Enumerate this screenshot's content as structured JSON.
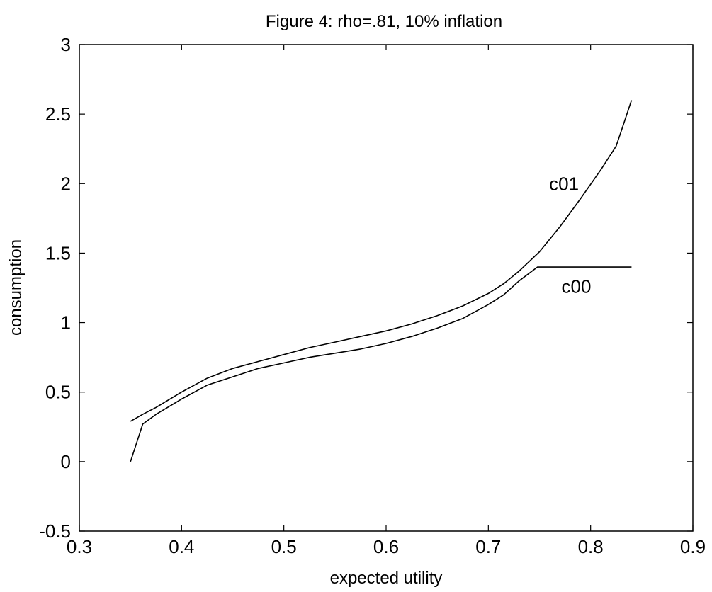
{
  "chart_data": {
    "type": "line",
    "title": "Figure 4: rho=.81, 10% inflation",
    "xlabel": "expected utility",
    "ylabel": "consumption",
    "xlim": [
      0.3,
      0.9
    ],
    "ylim": [
      -0.5,
      3
    ],
    "xticks": [
      {
        "value": 0.3,
        "label": "0.3"
      },
      {
        "value": 0.4,
        "label": "0.4"
      },
      {
        "value": 0.5,
        "label": "0.5"
      },
      {
        "value": 0.6,
        "label": "0.6"
      },
      {
        "value": 0.7,
        "label": "0.7"
      },
      {
        "value": 0.8,
        "label": "0.8"
      },
      {
        "value": 0.9,
        "label": "0.9"
      }
    ],
    "yticks": [
      {
        "value": -0.5,
        "label": "-0.5"
      },
      {
        "value": 0,
        "label": "0"
      },
      {
        "value": 0.5,
        "label": "0.5"
      },
      {
        "value": 1,
        "label": "1"
      },
      {
        "value": 1.5,
        "label": "1.5"
      },
      {
        "value": 2,
        "label": "2"
      },
      {
        "value": 2.5,
        "label": "2.5"
      },
      {
        "value": 3,
        "label": "3"
      }
    ],
    "grid": false,
    "legend": "none",
    "line_color": "#000000",
    "series": [
      {
        "name": "c01",
        "x": [
          0.35,
          0.362,
          0.375,
          0.4,
          0.425,
          0.45,
          0.475,
          0.5,
          0.525,
          0.55,
          0.575,
          0.6,
          0.625,
          0.65,
          0.675,
          0.7,
          0.715,
          0.73,
          0.75,
          0.77,
          0.79,
          0.81,
          0.825,
          0.83,
          0.84
        ],
        "y": [
          0.29,
          0.34,
          0.39,
          0.5,
          0.6,
          0.67,
          0.72,
          0.77,
          0.82,
          0.86,
          0.9,
          0.94,
          0.99,
          1.05,
          1.12,
          1.21,
          1.28,
          1.37,
          1.51,
          1.69,
          1.89,
          2.1,
          2.27,
          2.38,
          2.6
        ]
      },
      {
        "name": "c00",
        "x": [
          0.35,
          0.362,
          0.375,
          0.4,
          0.425,
          0.45,
          0.475,
          0.5,
          0.525,
          0.55,
          0.575,
          0.6,
          0.625,
          0.65,
          0.675,
          0.7,
          0.715,
          0.73,
          0.748,
          0.76,
          0.8,
          0.84
        ],
        "y": [
          0.0,
          0.27,
          0.34,
          0.45,
          0.55,
          0.61,
          0.67,
          0.71,
          0.75,
          0.78,
          0.81,
          0.85,
          0.9,
          0.96,
          1.03,
          1.13,
          1.2,
          1.3,
          1.4,
          1.4,
          1.4,
          1.4
        ]
      }
    ],
    "annotations": [
      {
        "text": "c01",
        "x": 0.774,
        "y": 2.0
      },
      {
        "text": "c00",
        "x": 0.786,
        "y": 1.26
      }
    ]
  }
}
